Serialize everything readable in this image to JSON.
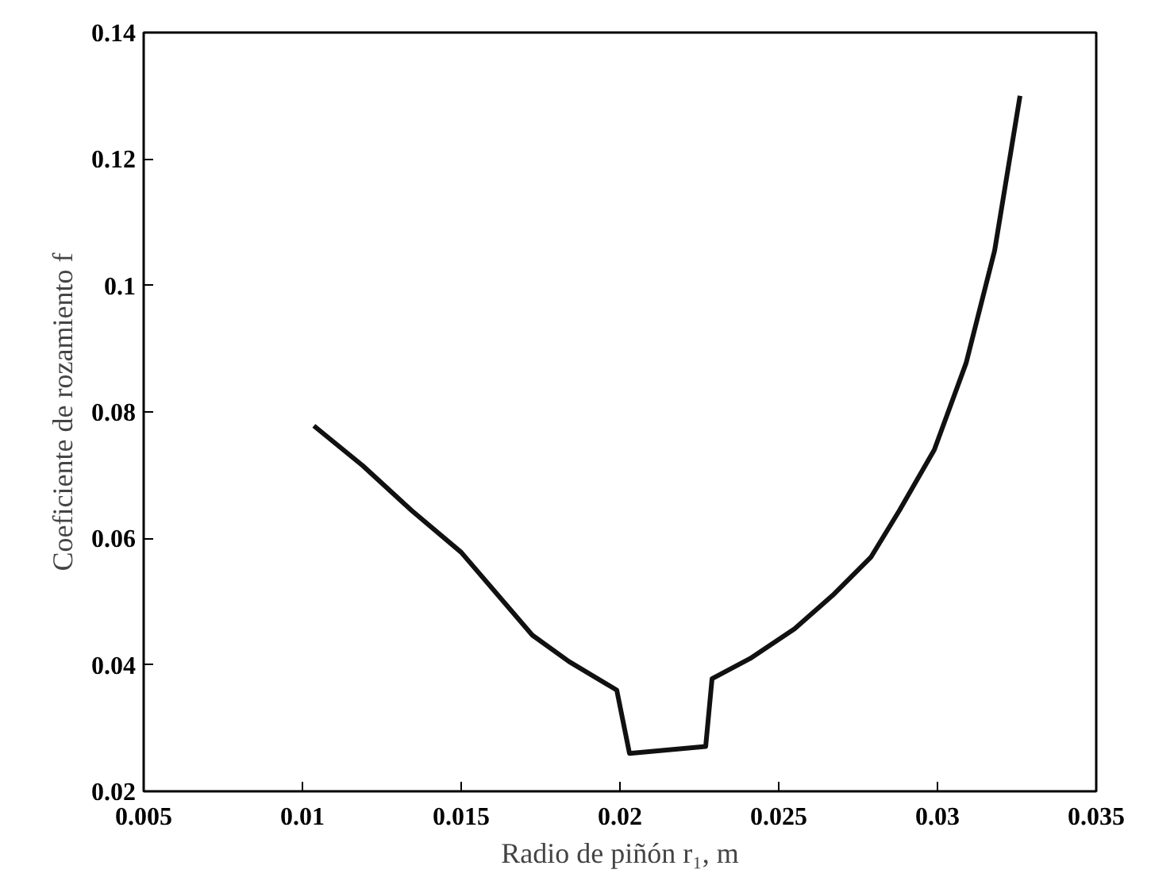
{
  "chart_data": {
    "type": "line",
    "xlabel": "Radio de piñón r₁, m",
    "ylabel": "Coeficiente de rozamiento f",
    "xlim": [
      0.005,
      0.035
    ],
    "ylim": [
      0.02,
      0.14
    ],
    "xticks": [
      0.005,
      0.01,
      0.015,
      0.02,
      0.025,
      0.03,
      0.035
    ],
    "yticks": [
      0.02,
      0.04,
      0.06,
      0.08,
      0.1,
      0.12,
      0.14
    ],
    "grid": false,
    "marker": "none",
    "line_style": "solid",
    "series": [
      {
        "color": "#111111",
        "x": [
          0.01036,
          0.0119,
          0.01344,
          0.015,
          0.01724,
          0.0184,
          0.0199,
          0.0203,
          0.0227,
          0.0229,
          0.0241,
          0.0255,
          0.0267,
          0.0279,
          0.0288,
          0.0299,
          0.0309,
          0.0318,
          0.0326
        ],
        "values": [
          0.0778,
          0.0715,
          0.0644,
          0.0578,
          0.0447,
          0.0405,
          0.036,
          0.026,
          0.0271,
          0.0378,
          0.041,
          0.0457,
          0.051,
          0.057,
          0.0644,
          0.074,
          0.0877,
          0.1055,
          0.13
        ]
      }
    ]
  }
}
